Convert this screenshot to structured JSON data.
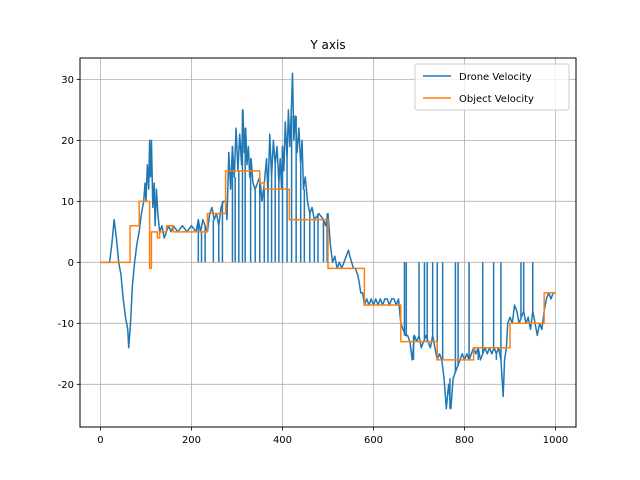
{
  "chart_data": {
    "type": "line",
    "title": "Y axis",
    "xlabel": "",
    "ylabel": "",
    "xlim": [
      -45,
      1045
    ],
    "ylim": [
      -27,
      33.5
    ],
    "xticks": [
      0,
      200,
      400,
      600,
      800,
      1000
    ],
    "yticks": [
      -20,
      -10,
      0,
      10,
      20,
      30
    ],
    "grid": true,
    "legend_position": "top-right",
    "series": [
      {
        "name": "Drone Velocity",
        "color": "#1f77b4",
        "points": [
          [
            0,
            0
          ],
          [
            20,
            0
          ],
          [
            25,
            3
          ],
          [
            30,
            7
          ],
          [
            35,
            4
          ],
          [
            40,
            0
          ],
          [
            45,
            -2
          ],
          [
            50,
            -6
          ],
          [
            55,
            -9
          ],
          [
            60,
            -11
          ],
          [
            62,
            -14
          ],
          [
            66,
            -10
          ],
          [
            70,
            -4
          ],
          [
            75,
            0
          ],
          [
            80,
            3
          ],
          [
            85,
            5
          ],
          [
            90,
            8
          ],
          [
            95,
            10
          ],
          [
            98,
            13
          ],
          [
            100,
            10
          ],
          [
            103,
            16
          ],
          [
            106,
            12
          ],
          [
            108,
            20
          ],
          [
            110,
            14
          ],
          [
            112,
            20
          ],
          [
            115,
            9
          ],
          [
            118,
            13
          ],
          [
            120,
            6
          ],
          [
            123,
            12
          ],
          [
            126,
            8
          ],
          [
            130,
            5
          ],
          [
            135,
            6
          ],
          [
            140,
            4
          ],
          [
            145,
            5
          ],
          [
            150,
            6
          ],
          [
            155,
            5
          ],
          [
            160,
            6
          ],
          [
            170,
            5
          ],
          [
            180,
            6
          ],
          [
            190,
            5
          ],
          [
            200,
            6
          ],
          [
            210,
            5
          ],
          [
            215,
            7
          ],
          [
            220,
            5
          ],
          [
            225,
            7
          ],
          [
            230,
            6
          ],
          [
            235,
            5
          ],
          [
            240,
            8
          ],
          [
            245,
            9
          ],
          [
            250,
            7
          ],
          [
            255,
            8
          ],
          [
            260,
            6
          ],
          [
            265,
            9
          ],
          [
            270,
            10
          ],
          [
            275,
            10
          ],
          [
            278,
            7
          ],
          [
            282,
            18
          ],
          [
            286,
            12
          ],
          [
            290,
            19
          ],
          [
            294,
            14
          ],
          [
            298,
            22
          ],
          [
            302,
            15
          ],
          [
            306,
            21
          ],
          [
            310,
            16
          ],
          [
            313,
            25
          ],
          [
            316,
            18
          ],
          [
            319,
            22
          ],
          [
            322,
            16
          ],
          [
            325,
            19
          ],
          [
            328,
            14
          ],
          [
            331,
            17
          ],
          [
            335,
            13
          ],
          [
            340,
            12
          ],
          [
            345,
            13
          ],
          [
            350,
            14
          ],
          [
            355,
            10
          ],
          [
            360,
            13
          ],
          [
            365,
            17
          ],
          [
            368,
            11
          ],
          [
            372,
            21
          ],
          [
            376,
            14
          ],
          [
            380,
            20
          ],
          [
            384,
            16
          ],
          [
            388,
            19
          ],
          [
            392,
            13
          ],
          [
            395,
            17
          ],
          [
            398,
            12
          ],
          [
            400,
            19
          ],
          [
            403,
            15
          ],
          [
            406,
            23
          ],
          [
            410,
            17
          ],
          [
            413,
            25
          ],
          [
            416,
            19
          ],
          [
            419,
            24
          ],
          [
            422,
            31
          ],
          [
            425,
            20
          ],
          [
            428,
            24
          ],
          [
            432,
            18
          ],
          [
            436,
            22
          ],
          [
            440,
            16
          ],
          [
            443,
            20
          ],
          [
            446,
            12
          ],
          [
            450,
            14
          ],
          [
            455,
            10
          ],
          [
            460,
            8
          ],
          [
            465,
            9
          ],
          [
            470,
            7
          ],
          [
            480,
            8
          ],
          [
            490,
            7
          ],
          [
            495,
            6
          ],
          [
            500,
            8
          ],
          [
            505,
            3
          ],
          [
            510,
            0
          ],
          [
            515,
            1
          ],
          [
            520,
            -1
          ],
          [
            525,
            0
          ],
          [
            530,
            -1
          ],
          [
            535,
            0
          ],
          [
            540,
            1
          ],
          [
            545,
            2
          ],
          [
            548,
            1
          ],
          [
            552,
            0
          ],
          [
            556,
            -1
          ],
          [
            560,
            -1
          ],
          [
            565,
            -2
          ],
          [
            568,
            -3
          ],
          [
            572,
            -5
          ],
          [
            576,
            -5
          ],
          [
            580,
            -7
          ],
          [
            585,
            -6
          ],
          [
            590,
            -7
          ],
          [
            595,
            -6
          ],
          [
            600,
            -7
          ],
          [
            605,
            -6
          ],
          [
            610,
            -7
          ],
          [
            615,
            -6
          ],
          [
            620,
            -7
          ],
          [
            625,
            -6
          ],
          [
            630,
            -6
          ],
          [
            635,
            -7
          ],
          [
            640,
            -6
          ],
          [
            645,
            -6
          ],
          [
            650,
            -7
          ],
          [
            655,
            -6
          ],
          [
            660,
            -10
          ],
          [
            665,
            -11
          ],
          [
            670,
            -12
          ],
          [
            675,
            -12
          ],
          [
            680,
            -13
          ],
          [
            685,
            -16
          ],
          [
            690,
            -12
          ],
          [
            695,
            -13
          ],
          [
            700,
            -12
          ],
          [
            705,
            -14
          ],
          [
            710,
            -13
          ],
          [
            715,
            -12
          ],
          [
            720,
            -13
          ],
          [
            725,
            -14
          ],
          [
            730,
            -12
          ],
          [
            735,
            -14
          ],
          [
            740,
            -16
          ],
          [
            745,
            -15
          ],
          [
            750,
            -16
          ],
          [
            755,
            -19
          ],
          [
            760,
            -24
          ],
          [
            765,
            -20
          ],
          [
            770,
            -24
          ],
          [
            775,
            -19
          ],
          [
            780,
            -18
          ],
          [
            785,
            -17
          ],
          [
            790,
            -16
          ],
          [
            795,
            -15
          ],
          [
            800,
            -16
          ],
          [
            805,
            -15
          ],
          [
            810,
            -16
          ],
          [
            815,
            -15
          ],
          [
            820,
            -14
          ],
          [
            825,
            -15
          ],
          [
            830,
            -14
          ],
          [
            835,
            -16
          ],
          [
            840,
            -15
          ],
          [
            845,
            -14
          ],
          [
            850,
            -15
          ],
          [
            855,
            -14
          ],
          [
            860,
            -15
          ],
          [
            865,
            -14
          ],
          [
            870,
            -15
          ],
          [
            875,
            -14
          ],
          [
            880,
            -16
          ],
          [
            885,
            -22
          ],
          [
            888,
            -16
          ],
          [
            892,
            -14
          ],
          [
            895,
            -10
          ],
          [
            900,
            -9
          ],
          [
            905,
            -10
          ],
          [
            910,
            -7
          ],
          [
            915,
            -8
          ],
          [
            920,
            -10
          ],
          [
            925,
            -9
          ],
          [
            930,
            -8
          ],
          [
            935,
            -10
          ],
          [
            940,
            -9
          ],
          [
            945,
            -11
          ],
          [
            950,
            -8
          ],
          [
            955,
            -10
          ],
          [
            960,
            -12
          ],
          [
            965,
            -10
          ],
          [
            970,
            -11
          ],
          [
            975,
            -8
          ],
          [
            980,
            -6
          ],
          [
            985,
            -5
          ],
          [
            990,
            -6
          ],
          [
            995,
            -5
          ],
          [
            1000,
            -5
          ]
        ],
        "spikes": [
          [
            215,
            0
          ],
          [
            222,
            0
          ],
          [
            230,
            0
          ],
          [
            248,
            0
          ],
          [
            260,
            0
          ],
          [
            268,
            0
          ],
          [
            290,
            0
          ],
          [
            296,
            0
          ],
          [
            304,
            0
          ],
          [
            312,
            0
          ],
          [
            318,
            0
          ],
          [
            330,
            0
          ],
          [
            340,
            0
          ],
          [
            350,
            0
          ],
          [
            360,
            0
          ],
          [
            368,
            0
          ],
          [
            376,
            0
          ],
          [
            384,
            0
          ],
          [
            392,
            0
          ],
          [
            400,
            0
          ],
          [
            410,
            0
          ],
          [
            420,
            0
          ],
          [
            430,
            0
          ],
          [
            440,
            0
          ],
          [
            448,
            0
          ],
          [
            460,
            0
          ],
          [
            470,
            0
          ],
          [
            478,
            0
          ],
          [
            490,
            0
          ],
          [
            498,
            0
          ],
          [
            668,
            0
          ],
          [
            672,
            0
          ],
          [
            688,
            -16
          ],
          [
            700,
            0
          ],
          [
            712,
            0
          ],
          [
            718,
            0
          ],
          [
            730,
            0
          ],
          [
            740,
            0
          ],
          [
            752,
            0
          ],
          [
            760,
            -24
          ],
          [
            768,
            -19
          ],
          [
            780,
            0
          ],
          [
            786,
            0
          ],
          [
            800,
            -16
          ],
          [
            810,
            0
          ],
          [
            830,
            -16
          ],
          [
            840,
            0
          ],
          [
            864,
            0
          ],
          [
            870,
            -16
          ],
          [
            880,
            0
          ],
          [
            884,
            -22
          ],
          [
            924,
            0
          ],
          [
            930,
            0
          ],
          [
            944,
            -11
          ],
          [
            950,
            0
          ]
        ]
      },
      {
        "name": "Object Velocity",
        "color": "#ff7f0e",
        "points": [
          [
            0,
            0
          ],
          [
            65,
            0
          ],
          [
            65,
            6
          ],
          [
            85,
            6
          ],
          [
            85,
            10
          ],
          [
            108,
            10
          ],
          [
            108,
            -1
          ],
          [
            112,
            -1
          ],
          [
            112,
            5
          ],
          [
            125,
            5
          ],
          [
            125,
            4
          ],
          [
            130,
            4
          ],
          [
            130,
            5
          ],
          [
            145,
            5
          ],
          [
            145,
            6
          ],
          [
            160,
            6
          ],
          [
            160,
            5
          ],
          [
            235,
            5
          ],
          [
            235,
            8
          ],
          [
            275,
            8
          ],
          [
            275,
            15
          ],
          [
            350,
            15
          ],
          [
            350,
            13
          ],
          [
            360,
            13
          ],
          [
            360,
            12
          ],
          [
            415,
            12
          ],
          [
            415,
            7
          ],
          [
            480,
            7
          ],
          [
            480,
            7
          ],
          [
            500,
            7
          ],
          [
            500,
            -1
          ],
          [
            520,
            -1
          ],
          [
            520,
            -1
          ],
          [
            580,
            -1
          ],
          [
            580,
            -7
          ],
          [
            660,
            -7
          ],
          [
            660,
            -13
          ],
          [
            740,
            -13
          ],
          [
            740,
            -16
          ],
          [
            820,
            -16
          ],
          [
            820,
            -14
          ],
          [
            900,
            -14
          ],
          [
            900,
            -10
          ],
          [
            975,
            -10
          ],
          [
            975,
            -5
          ],
          [
            1000,
            -5
          ]
        ]
      }
    ]
  }
}
